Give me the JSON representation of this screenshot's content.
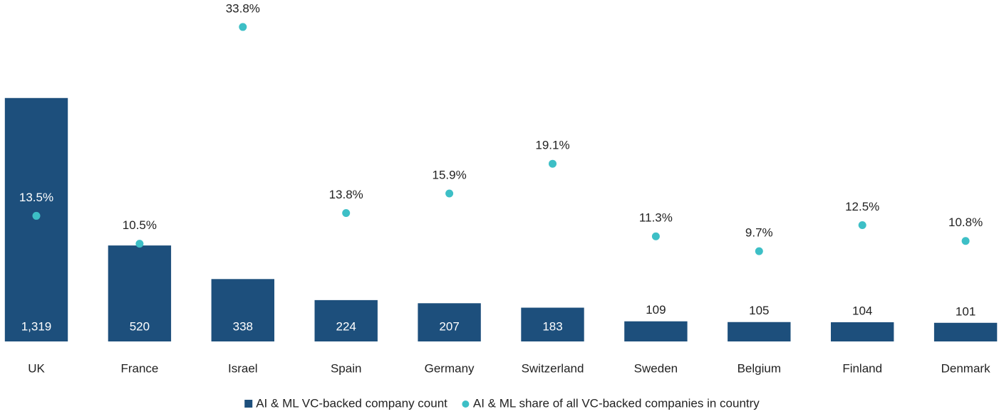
{
  "chart_data": {
    "type": "bar_dot",
    "categories": [
      "UK",
      "France",
      "Israel",
      "Spain",
      "Germany",
      "Switzerland",
      "Sweden",
      "Belgium",
      "Finland",
      "Denmark"
    ],
    "series": [
      {
        "name": "AI & ML VC-backed company count",
        "type": "bar",
        "color": "#1d4f7c",
        "values": [
          1319,
          520,
          338,
          224,
          207,
          183,
          109,
          105,
          104,
          101
        ],
        "value_labels": [
          "1,319",
          "520",
          "338",
          "224",
          "207",
          "183",
          "109",
          "105",
          "104",
          "101"
        ]
      },
      {
        "name": "AI & ML share of all VC-backed companies in country",
        "type": "dot",
        "axis": "y2",
        "color": "#3dbfc6",
        "values": [
          13.5,
          10.5,
          33.8,
          13.8,
          15.9,
          19.1,
          11.3,
          9.7,
          12.5,
          10.8
        ],
        "value_labels": [
          "13.5%",
          "10.5%",
          "33.8%",
          "13.8%",
          "15.9%",
          "19.1%",
          "11.3%",
          "9.7%",
          "12.5%",
          "10.8%"
        ]
      }
    ],
    "ylim": [
      0,
      1850
    ],
    "y2lim": [
      0,
      36.7
    ],
    "legend": "bottom"
  }
}
